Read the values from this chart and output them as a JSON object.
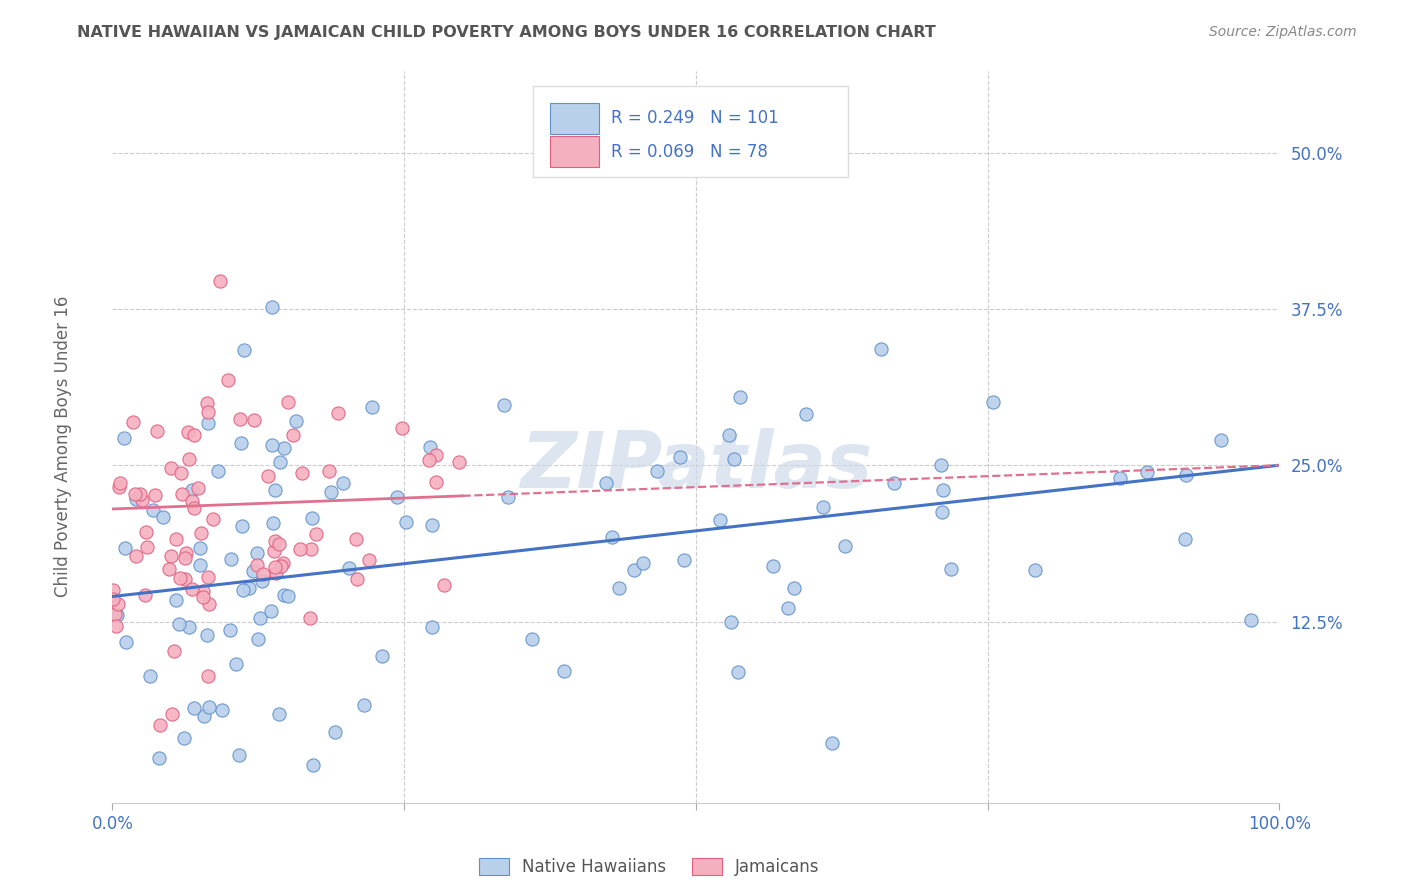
{
  "title": "NATIVE HAWAIIAN VS JAMAICAN CHILD POVERTY AMONG BOYS UNDER 16 CORRELATION CHART",
  "source": "Source: ZipAtlas.com",
  "ylabel": "Child Poverty Among Boys Under 16",
  "ytick_labels": [
    "12.5%",
    "25.0%",
    "37.5%",
    "50.0%"
  ],
  "ytick_values": [
    0.125,
    0.25,
    0.375,
    0.5
  ],
  "xlim": [
    0.0,
    1.0
  ],
  "ylim": [
    -0.02,
    0.565
  ],
  "nh_R": 0.249,
  "nh_N": 101,
  "jam_R": 0.069,
  "jam_N": 78,
  "nh_color": "#b8d0ea",
  "jam_color": "#f5b0c0",
  "nh_edge_color": "#6090cc",
  "jam_edge_color": "#e06080",
  "nh_line_color": "#4472c4",
  "jam_line_color": "#e07090",
  "tick_color": "#4472c4",
  "watermark": "ZIPatlas",
  "background_color": "#ffffff",
  "grid_color": "#cccccc",
  "title_color": "#555555",
  "source_color": "#888888",
  "legend_text_color": "#4472c4",
  "nh_intercept": 0.145,
  "nh_slope": 0.105,
  "jam_intercept": 0.215,
  "jam_slope": 0.035,
  "seed_nh": 7,
  "seed_jam": 13
}
